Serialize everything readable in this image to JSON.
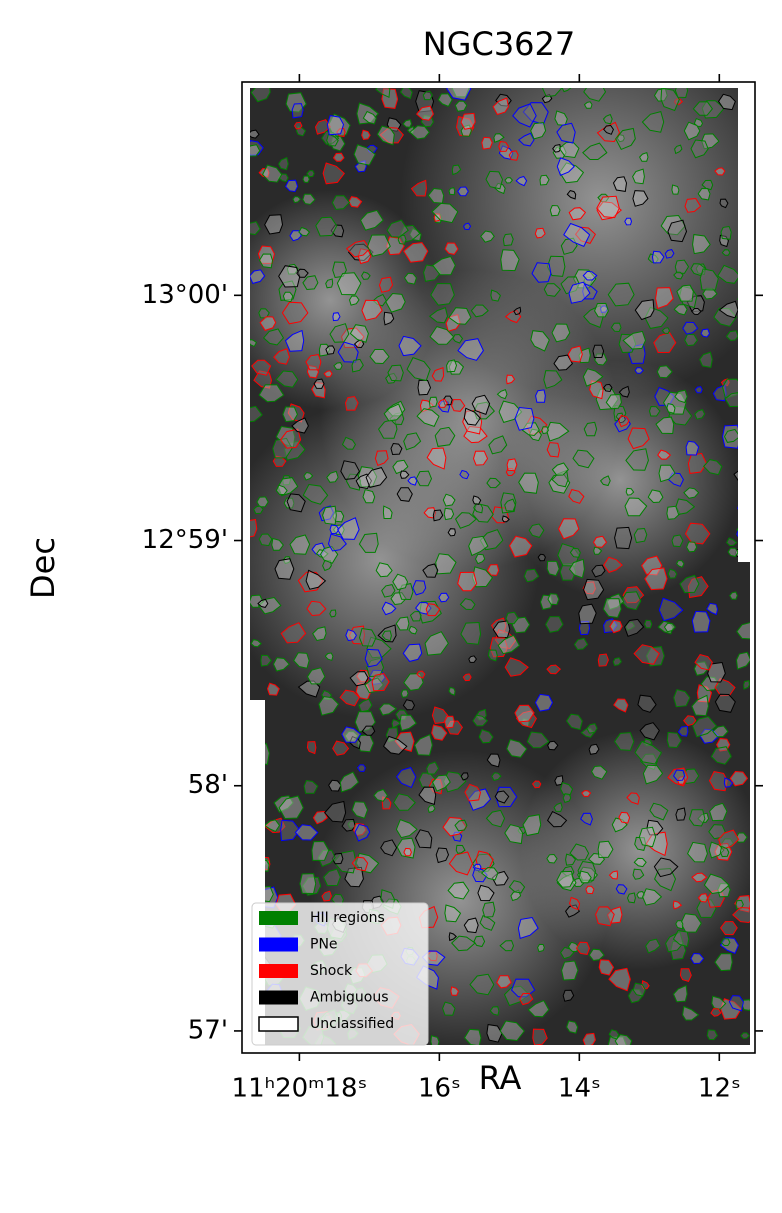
{
  "chart_data": {
    "type": "image",
    "title": "NGC3627",
    "xlabel": "RA",
    "ylabel": "Dec",
    "xlim": [
      18.82,
      11.49
    ],
    "xticks": [
      {
        "value": 18,
        "label": "11ʰ20ᵐ18ˢ"
      },
      {
        "value": 16,
        "label": "16ˢ"
      },
      {
        "value": 14,
        "label": "14ˢ"
      },
      {
        "value": 12,
        "label": "12ˢ"
      }
    ],
    "ylim": [
      56.91,
      60.87
    ],
    "yticks": [
      {
        "value": 60,
        "label": "13°00'"
      },
      {
        "value": 59,
        "label": "12°59'"
      },
      {
        "value": 58,
        "label": "58'"
      },
      {
        "value": 57,
        "label": "57'"
      }
    ],
    "legend": {
      "corner": "lower left",
      "entries": [
        {
          "name": "HII regions",
          "color": "#008000"
        },
        {
          "name": "PNe",
          "color": "#0000ff"
        },
        {
          "name": "Shock",
          "color": "#ff0000"
        },
        {
          "name": "Ambiguous",
          "color": "#000000"
        },
        {
          "name": "Unclassified",
          "color": "#ffffff"
        }
      ]
    }
  }
}
